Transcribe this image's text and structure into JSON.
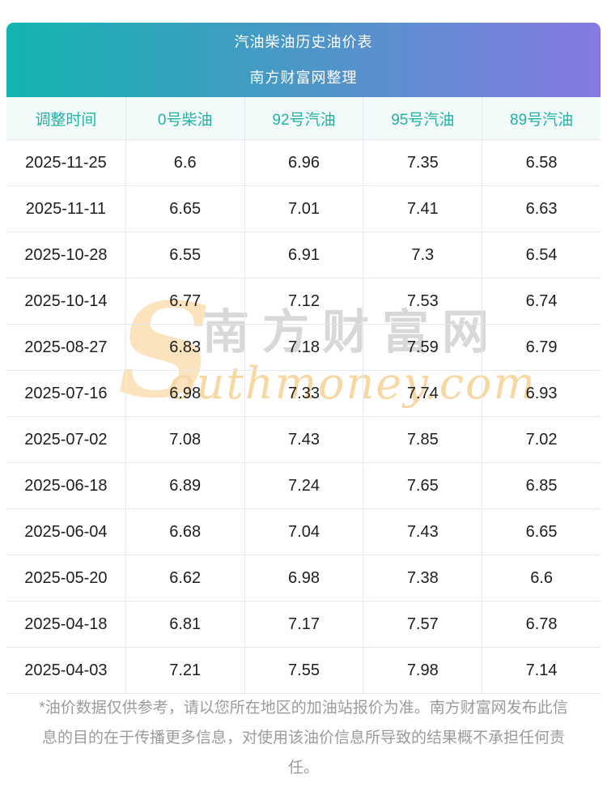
{
  "header": {
    "title": "汽油柴油历史油价表",
    "subtitle": "南方财富网整理",
    "gradient_from": "#12b4ae",
    "gradient_to": "#8679e2",
    "text_color": "#ffffff"
  },
  "chart_data": {
    "type": "table",
    "title": "汽油柴油历史油价表",
    "subtitle": "南方财富网整理",
    "columns": [
      "调整时间",
      "0号柴油",
      "92号汽油",
      "95号汽油",
      "89号汽油"
    ],
    "rows": [
      [
        "2025-11-25",
        "6.6",
        "6.96",
        "7.35",
        "6.58"
      ],
      [
        "2025-11-11",
        "6.65",
        "7.01",
        "7.41",
        "6.63"
      ],
      [
        "2025-10-28",
        "6.55",
        "6.91",
        "7.3",
        "6.54"
      ],
      [
        "2025-10-14",
        "6.77",
        "7.12",
        "7.53",
        "6.74"
      ],
      [
        "2025-08-27",
        "6.83",
        "7.18",
        "7.59",
        "6.79"
      ],
      [
        "2025-07-16",
        "6.98",
        "7.33",
        "7.74",
        "6.93"
      ],
      [
        "2025-07-02",
        "7.08",
        "7.43",
        "7.85",
        "7.02"
      ],
      [
        "2025-06-18",
        "6.89",
        "7.24",
        "7.65",
        "6.85"
      ],
      [
        "2025-06-04",
        "6.68",
        "7.04",
        "7.43",
        "6.65"
      ],
      [
        "2025-05-20",
        "6.62",
        "6.98",
        "7.38",
        "6.6"
      ],
      [
        "2025-04-18",
        "6.81",
        "7.17",
        "7.57",
        "6.78"
      ],
      [
        "2025-04-03",
        "7.21",
        "7.55",
        "7.98",
        "7.14"
      ]
    ],
    "header_text_color": "#21b2a6",
    "body_text_color": "#1e1e1e",
    "header_row_bg": "#f2fafa",
    "divider_color": "#e3e8ee"
  },
  "watermark": {
    "s_glyph": "S",
    "cn_text": "南方财富网",
    "en_text": "outhmoney.com",
    "s_color": "#fbe3bd",
    "cn_color": "#d8d8d8",
    "en_color": "#f7d8a5"
  },
  "footnote": {
    "text": "*油价数据仅供参考，请以您所在地区的加油站报价为准。南方财富网发布此信息的目的在于传播更多信息，对使用该油价信息所导致的结果概不承担任何责任。",
    "color": "#9b9b9b"
  }
}
